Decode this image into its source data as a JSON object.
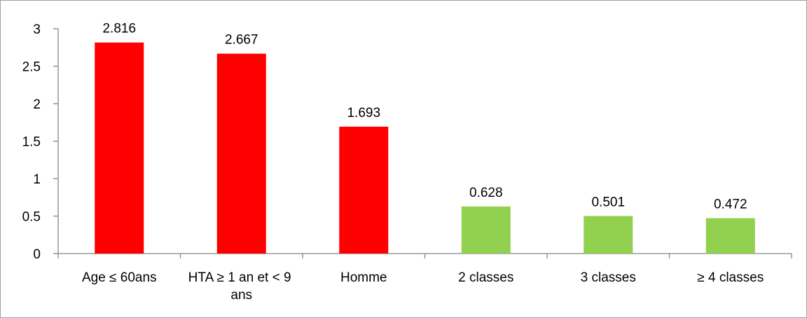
{
  "chart_data": {
    "type": "bar",
    "categories": [
      "Age ≤ 60ans",
      "HTA ≥ 1 an et < 9 ans",
      "Homme",
      "2 classes",
      "3 classes",
      "≥ 4 classes"
    ],
    "values": [
      2.816,
      2.667,
      1.693,
      0.628,
      0.501,
      0.472
    ],
    "colors": [
      "#ff0000",
      "#ff0000",
      "#ff0000",
      "#92d050",
      "#92d050",
      "#92d050"
    ],
    "ylim": [
      0,
      3
    ],
    "yticks": [
      0,
      0.5,
      1,
      1.5,
      2,
      2.5,
      3
    ],
    "grid": false
  }
}
